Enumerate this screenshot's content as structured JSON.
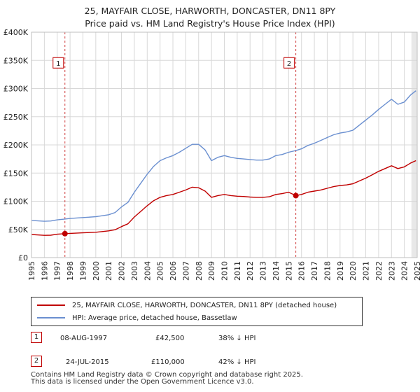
{
  "chart_data": {
    "type": "line",
    "title": "25, MAYFAIR CLOSE, HARWORTH, DONCASTER, DN11 8PY",
    "subtitle": "Price paid vs. HM Land Registry's House Price Index (HPI)",
    "xlim": [
      1995.0,
      2025.0
    ],
    "ylim": [
      0,
      400000
    ],
    "x_ticks": [
      "1995",
      "1996",
      "1997",
      "1998",
      "1999",
      "2000",
      "2001",
      "2002",
      "2003",
      "2004",
      "2005",
      "2006",
      "2007",
      "2008",
      "2009",
      "2010",
      "2011",
      "2012",
      "2013",
      "2014",
      "2015",
      "2016",
      "2017",
      "2018",
      "2019",
      "2020",
      "2021",
      "2022",
      "2023",
      "2024",
      "2025"
    ],
    "y_ticks": [
      {
        "value": 0,
        "label": "£0"
      },
      {
        "value": 50000,
        "label": "£50K"
      },
      {
        "value": 100000,
        "label": "£100K"
      },
      {
        "value": 150000,
        "label": "£150K"
      },
      {
        "value": 200000,
        "label": "£200K"
      },
      {
        "value": 250000,
        "label": "£250K"
      },
      {
        "value": 300000,
        "label": "£300K"
      },
      {
        "value": 350000,
        "label": "£350K"
      },
      {
        "value": 400000,
        "label": "£400K"
      }
    ],
    "grid": true,
    "series": [
      {
        "name": "25, MAYFAIR CLOSE, HARWORTH, DONCASTER, DN11 8PY (detached house)",
        "color": "#c00000",
        "points": [
          [
            1995.0,
            41000
          ],
          [
            1996.0,
            39500
          ],
          [
            1996.5,
            39800
          ],
          [
            1997.0,
            41500
          ],
          [
            1997.6,
            42500
          ],
          [
            1998.0,
            43000
          ],
          [
            1999.0,
            44000
          ],
          [
            2000.0,
            45000
          ],
          [
            2001.0,
            47500
          ],
          [
            2001.5,
            49500
          ],
          [
            2002.0,
            55000
          ],
          [
            2002.5,
            60000
          ],
          [
            2003.0,
            72000
          ],
          [
            2003.5,
            82000
          ],
          [
            2004.0,
            92000
          ],
          [
            2004.5,
            101000
          ],
          [
            2005.0,
            107000
          ],
          [
            2005.5,
            110000
          ],
          [
            2006.0,
            112000
          ],
          [
            2006.5,
            116000
          ],
          [
            2007.0,
            120000
          ],
          [
            2007.5,
            125000
          ],
          [
            2008.0,
            124000
          ],
          [
            2008.5,
            118000
          ],
          [
            2009.0,
            107000
          ],
          [
            2009.5,
            110000
          ],
          [
            2010.0,
            112000
          ],
          [
            2010.5,
            110000
          ],
          [
            2011.0,
            109000
          ],
          [
            2011.5,
            108500
          ],
          [
            2012.0,
            107500
          ],
          [
            2012.5,
            107000
          ],
          [
            2013.0,
            107000
          ],
          [
            2013.5,
            108000
          ],
          [
            2014.0,
            112000
          ],
          [
            2014.5,
            113500
          ],
          [
            2015.0,
            116000
          ],
          [
            2015.56,
            110000
          ],
          [
            2016.0,
            112000
          ],
          [
            2016.5,
            116000
          ],
          [
            2017.0,
            118000
          ],
          [
            2017.5,
            120000
          ],
          [
            2018.0,
            123000
          ],
          [
            2018.5,
            126000
          ],
          [
            2019.0,
            128000
          ],
          [
            2019.5,
            129000
          ],
          [
            2020.0,
            131000
          ],
          [
            2020.5,
            136000
          ],
          [
            2021.0,
            141000
          ],
          [
            2021.5,
            147000
          ],
          [
            2022.0,
            153000
          ],
          [
            2022.5,
            158000
          ],
          [
            2023.0,
            163000
          ],
          [
            2023.5,
            158000
          ],
          [
            2024.0,
            161000
          ],
          [
            2024.5,
            168000
          ],
          [
            2024.9,
            172000
          ]
        ]
      },
      {
        "name": "HPI: Average price, detached house, Bassetlaw",
        "color": "#6a8fd0",
        "points": [
          [
            1995.0,
            66000
          ],
          [
            1996.0,
            64500
          ],
          [
            1996.5,
            65000
          ],
          [
            1997.0,
            67000
          ],
          [
            1997.6,
            68500
          ],
          [
            1998.0,
            69500
          ],
          [
            1999.0,
            71000
          ],
          [
            2000.0,
            72500
          ],
          [
            2001.0,
            76000
          ],
          [
            2001.5,
            80000
          ],
          [
            2002.0,
            90000
          ],
          [
            2002.5,
            98000
          ],
          [
            2003.0,
            116000
          ],
          [
            2003.5,
            132000
          ],
          [
            2004.0,
            148000
          ],
          [
            2004.5,
            162000
          ],
          [
            2005.0,
            172000
          ],
          [
            2005.5,
            177000
          ],
          [
            2006.0,
            181000
          ],
          [
            2006.5,
            187000
          ],
          [
            2007.0,
            194000
          ],
          [
            2007.5,
            201000
          ],
          [
            2008.0,
            201000
          ],
          [
            2008.5,
            191000
          ],
          [
            2009.0,
            172000
          ],
          [
            2009.5,
            178000
          ],
          [
            2010.0,
            181000
          ],
          [
            2010.5,
            178000
          ],
          [
            2011.0,
            176000
          ],
          [
            2011.5,
            175000
          ],
          [
            2012.0,
            174000
          ],
          [
            2012.5,
            173000
          ],
          [
            2013.0,
            173000
          ],
          [
            2013.5,
            175000
          ],
          [
            2014.0,
            181000
          ],
          [
            2014.5,
            183000
          ],
          [
            2015.0,
            187000
          ],
          [
            2015.56,
            190000
          ],
          [
            2016.0,
            193000
          ],
          [
            2016.5,
            199000
          ],
          [
            2017.0,
            203000
          ],
          [
            2017.5,
            208000
          ],
          [
            2018.0,
            213000
          ],
          [
            2018.5,
            218000
          ],
          [
            2019.0,
            221000
          ],
          [
            2019.5,
            223000
          ],
          [
            2020.0,
            226000
          ],
          [
            2020.5,
            235000
          ],
          [
            2021.0,
            244000
          ],
          [
            2021.5,
            253000
          ],
          [
            2022.0,
            263000
          ],
          [
            2022.5,
            272000
          ],
          [
            2023.0,
            281000
          ],
          [
            2023.5,
            272000
          ],
          [
            2024.0,
            276000
          ],
          [
            2024.5,
            289000
          ],
          [
            2024.9,
            296000
          ]
        ]
      }
    ],
    "sales": [
      {
        "id": "1",
        "x": 1997.6,
        "price": 42500,
        "date": "08-AUG-1997",
        "price_label": "£42,500",
        "hpi_diff": "38% ↓ HPI"
      },
      {
        "id": "2",
        "x": 2015.56,
        "price": 110000,
        "date": "24-JUL-2015",
        "price_label": "£110,000",
        "hpi_diff": "42% ↓ HPI"
      }
    ],
    "sale_box_value": 345000,
    "shaded_from": 2024.55
  },
  "legend": {
    "property_label": "25, MAYFAIR CLOSE, HARWORTH, DONCASTER, DN11 8PY (detached house)",
    "hpi_label": "HPI: Average price, detached house, Bassetlaw"
  },
  "footer": {
    "line1": "Contains HM Land Registry data © Crown copyright and database right 2025.",
    "line2": "This data is licensed under the Open Government Licence v3.0."
  }
}
